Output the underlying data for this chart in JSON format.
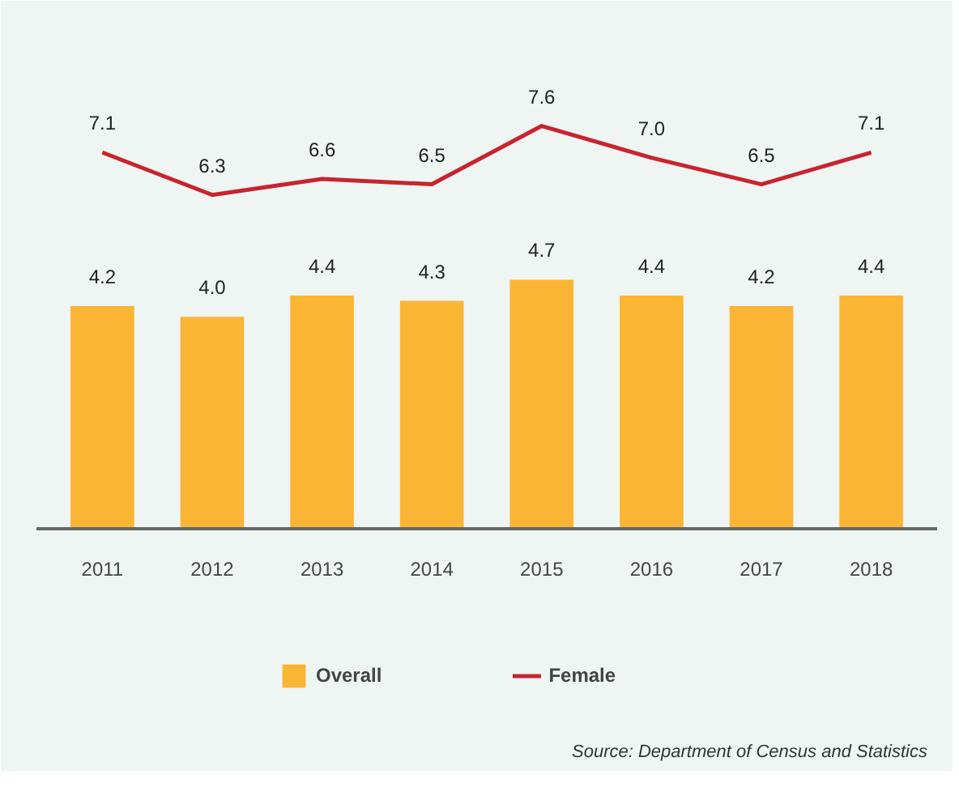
{
  "chart_data": {
    "type": "bar",
    "categories": [
      "2011",
      "2012",
      "2013",
      "2014",
      "2015",
      "2016",
      "2017",
      "2018"
    ],
    "series": [
      {
        "name": "Overall",
        "color": "#fbb534",
        "values": [
          4.2,
          4.0,
          4.4,
          4.3,
          4.7,
          4.4,
          4.2,
          4.4
        ],
        "value_labels": [
          "4.2",
          "4.0",
          "4.4",
          "4.3",
          "4.7",
          "4.4",
          "4.2",
          "4.4"
        ]
      },
      {
        "name": "Female",
        "type": "line",
        "color": "#c8242f",
        "values": [
          7.1,
          6.3,
          6.6,
          6.5,
          7.6,
          7.0,
          6.5,
          7.1
        ],
        "value_labels": [
          "7.1",
          "6.3",
          "6.6",
          "6.5",
          "7.6",
          "7.0",
          "6.5",
          "7.1"
        ]
      }
    ],
    "tick_labels": "x",
    "grid": false,
    "legend": "bottom",
    "annotations": [
      "Source: Department of Census and Statistics"
    ]
  }
}
